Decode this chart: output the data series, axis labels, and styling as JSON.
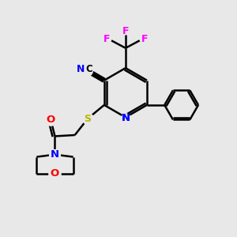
{
  "background_color": "#e8e8e8",
  "atom_colors": {
    "N": "#0000ff",
    "O": "#ff0000",
    "S": "#b8b800",
    "F": "#ff00ff",
    "C": "#000000"
  },
  "figsize": [
    3.0,
    3.0
  ],
  "dpi": 100
}
